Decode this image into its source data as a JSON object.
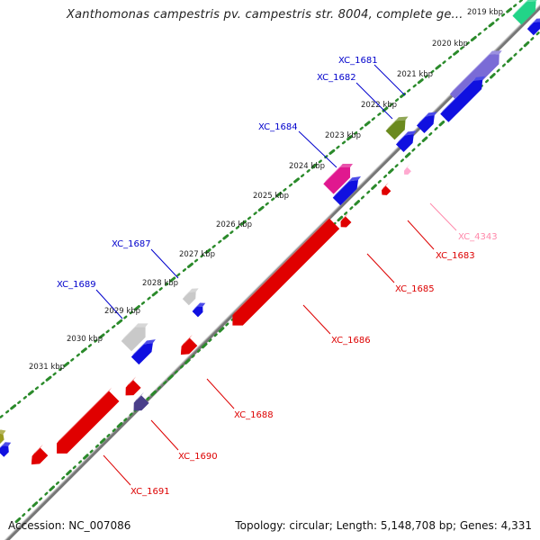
{
  "title": "Xanthomonas campestris pv. campestris str. 8004, complete ge...",
  "accession": "Accession: NC_007086",
  "summary": "Topology: circular; Length: 5,148,708 bp; Genes: 4,331",
  "colors": {
    "backbone": "#777777",
    "forward_tick": "#2a8a2a",
    "reverse_tick": "#2a8a2a",
    "forward_label": "#0000cc",
    "reverse_label": "#dd0000",
    "faded_label": "#ff88aa"
  },
  "kbp_ticks": [
    {
      "label": "2019 kbp"
    },
    {
      "label": "2020 kbp"
    },
    {
      "label": "2021 kbp"
    },
    {
      "label": "2022 kbp"
    },
    {
      "label": "2023 kbp"
    },
    {
      "label": "2024 kbp"
    },
    {
      "label": "2025 kbp"
    },
    {
      "label": "2026 kbp"
    },
    {
      "label": "2027 kbp"
    },
    {
      "label": "2028 kbp"
    },
    {
      "label": "2029 kbp"
    },
    {
      "label": "2030 kbp"
    },
    {
      "label": "2031 kbp"
    }
  ],
  "gene_labels": [
    {
      "label": "XC_1681",
      "strand": "forward"
    },
    {
      "label": "XC_1682",
      "strand": "forward"
    },
    {
      "label": "XC_1684",
      "strand": "forward"
    },
    {
      "label": "XC_1687",
      "strand": "forward"
    },
    {
      "label": "XC_1689",
      "strand": "forward"
    },
    {
      "label": "XC_4343",
      "strand": "reverse-faded"
    },
    {
      "label": "XC_1683",
      "strand": "reverse"
    },
    {
      "label": "XC_1685",
      "strand": "reverse"
    },
    {
      "label": "XC_1686",
      "strand": "reverse"
    },
    {
      "label": "XC_1688",
      "strand": "reverse"
    },
    {
      "label": "XC_1690",
      "strand": "reverse"
    },
    {
      "label": "XC_1691",
      "strand": "reverse"
    }
  ]
}
